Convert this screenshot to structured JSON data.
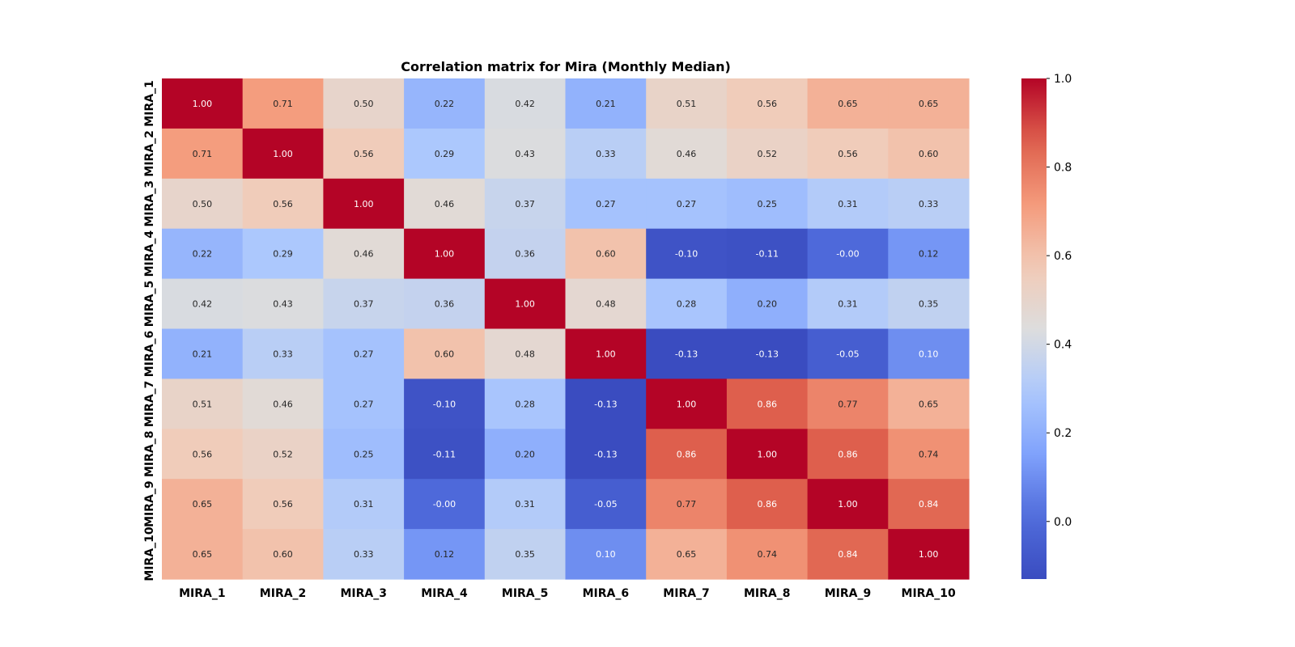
{
  "chart_data": {
    "type": "heatmap",
    "title": "Correlation matrix for Mira (Monthly Median)",
    "x_categories": [
      "MIRA_1",
      "MIRA_2",
      "MIRA_3",
      "MIRA_4",
      "MIRA_5",
      "MIRA_6",
      "MIRA_7",
      "MIRA_8",
      "MIRA_9",
      "MIRA_10"
    ],
    "y_categories": [
      "MIRA_1",
      "MIRA_2",
      "MIRA_3",
      "MIRA_4",
      "MIRA_5",
      "MIRA_6",
      "MIRA_7",
      "MIRA_8",
      "MIRA_9",
      "MIRA_10"
    ],
    "values": [
      [
        1.0,
        0.71,
        0.5,
        0.22,
        0.42,
        0.21,
        0.51,
        0.56,
        0.65,
        0.65
      ],
      [
        0.71,
        1.0,
        0.56,
        0.29,
        0.43,
        0.33,
        0.46,
        0.52,
        0.56,
        0.6
      ],
      [
        0.5,
        0.56,
        1.0,
        0.46,
        0.37,
        0.27,
        0.27,
        0.25,
        0.31,
        0.33
      ],
      [
        0.22,
        0.29,
        0.46,
        1.0,
        0.36,
        0.6,
        -0.1,
        -0.11,
        -0.0,
        0.12
      ],
      [
        0.42,
        0.43,
        0.37,
        0.36,
        1.0,
        0.48,
        0.28,
        0.2,
        0.31,
        0.35
      ],
      [
        0.21,
        0.33,
        0.27,
        0.6,
        0.48,
        1.0,
        -0.13,
        -0.13,
        -0.05,
        0.1
      ],
      [
        0.51,
        0.46,
        0.27,
        -0.1,
        0.28,
        -0.13,
        1.0,
        0.86,
        0.77,
        0.65
      ],
      [
        0.56,
        0.52,
        0.25,
        -0.11,
        0.2,
        -0.13,
        0.86,
        1.0,
        0.86,
        0.74
      ],
      [
        0.65,
        0.56,
        0.31,
        -0.0,
        0.31,
        -0.05,
        0.77,
        0.86,
        1.0,
        0.84
      ],
      [
        0.65,
        0.6,
        0.33,
        0.12,
        0.35,
        0.1,
        0.65,
        0.74,
        0.84,
        1.0
      ]
    ],
    "value_labels": [
      [
        "1.00",
        "0.71",
        "0.50",
        "0.22",
        "0.42",
        "0.21",
        "0.51",
        "0.56",
        "0.65",
        "0.65"
      ],
      [
        "0.71",
        "1.00",
        "0.56",
        "0.29",
        "0.43",
        "0.33",
        "0.46",
        "0.52",
        "0.56",
        "0.60"
      ],
      [
        "0.50",
        "0.56",
        "1.00",
        "0.46",
        "0.37",
        "0.27",
        "0.27",
        "0.25",
        "0.31",
        "0.33"
      ],
      [
        "0.22",
        "0.29",
        "0.46",
        "1.00",
        "0.36",
        "0.60",
        "-0.10",
        "-0.11",
        "-0.00",
        "0.12"
      ],
      [
        "0.42",
        "0.43",
        "0.37",
        "0.36",
        "1.00",
        "0.48",
        "0.28",
        "0.20",
        "0.31",
        "0.35"
      ],
      [
        "0.21",
        "0.33",
        "0.27",
        "0.60",
        "0.48",
        "1.00",
        "-0.13",
        "-0.13",
        "-0.05",
        "0.10"
      ],
      [
        "0.51",
        "0.46",
        "0.27",
        "-0.10",
        "0.28",
        "-0.13",
        "1.00",
        "0.86",
        "0.77",
        "0.65"
      ],
      [
        "0.56",
        "0.52",
        "0.25",
        "-0.11",
        "0.20",
        "-0.13",
        "0.86",
        "1.00",
        "0.86",
        "0.74"
      ],
      [
        "0.65",
        "0.56",
        "0.31",
        "-0.00",
        "0.31",
        "-0.05",
        "0.77",
        "0.86",
        "1.00",
        "0.84"
      ],
      [
        "0.65",
        "0.60",
        "0.33",
        "0.12",
        "0.35",
        "0.10",
        "0.65",
        "0.74",
        "0.84",
        "1.00"
      ]
    ],
    "colormap": "coolwarm",
    "vmin": -0.13,
    "vmax": 1.0,
    "colorbar": {
      "ticks": [
        0.0,
        0.2,
        0.4,
        0.6,
        0.8,
        1.0
      ],
      "tick_labels": [
        "0.0",
        "0.2",
        "0.4",
        "0.6",
        "0.8",
        "1.0"
      ],
      "placement": "right"
    },
    "grid": false
  }
}
